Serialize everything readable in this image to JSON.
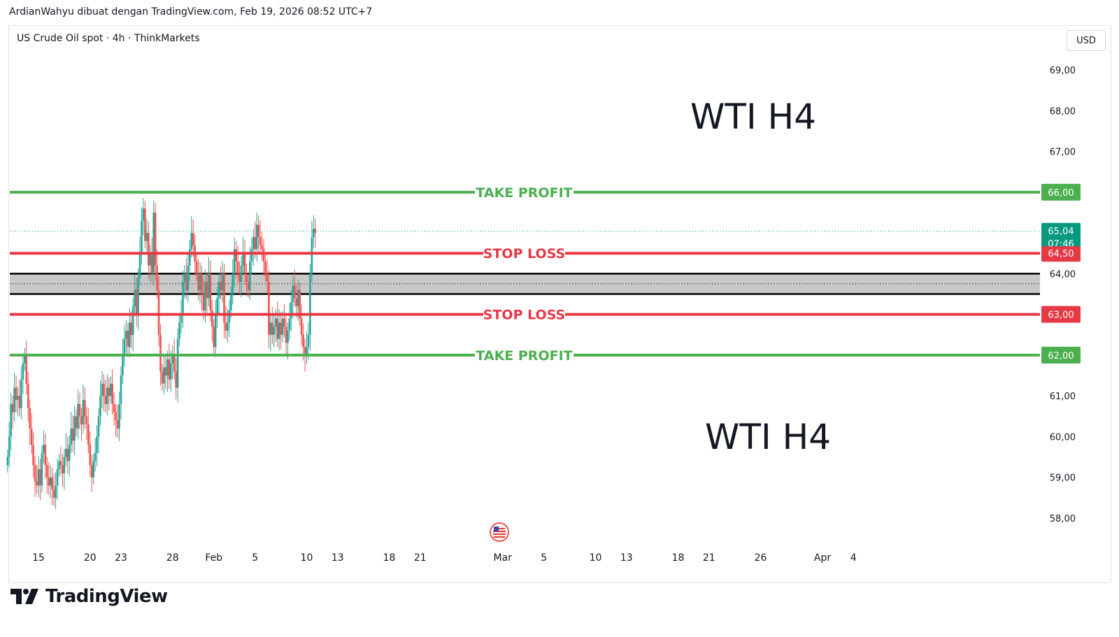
{
  "header": {
    "text": "ArdianWahyu dibuat dengan TradingView.com, Feb 19, 2026 08:52 UTC+7"
  },
  "symbol": {
    "label": "US Crude Oil spot · 4h · ThinkMarkets"
  },
  "currency_button": "USD",
  "footer": {
    "brand": "TradingView"
  },
  "colors": {
    "up": "#26a69a",
    "down": "#ef5350",
    "take_profit": "#4caf50",
    "stop_loss": "#e63946",
    "zone_fill": "#c8c8c8",
    "zone_border": "#000000",
    "current_price": "#089981"
  },
  "annotations": [
    "WTI H4",
    "WTI H4"
  ],
  "chart_data": {
    "type": "candlestick",
    "title": "US Crude Oil spot · 4h · ThinkMarkets",
    "ylim": [
      57.3,
      69.7
    ],
    "y_ticks": [
      "58,00",
      "59,00",
      "60,00",
      "61,00",
      "62,00",
      "63,00",
      "64,00",
      "65,00",
      "66,00",
      "67,00",
      "68,00",
      "69,00"
    ],
    "y_tick_values": [
      58,
      59,
      60,
      61,
      62,
      63,
      64,
      65,
      66,
      67,
      68,
      69
    ],
    "x_tick_labels": [
      "15",
      "20",
      "23",
      "28",
      "Feb",
      "5",
      "10",
      "13",
      "18",
      "21",
      "Mar",
      "5",
      "10",
      "13",
      "18",
      "21",
      "26",
      "Apr",
      "4"
    ],
    "x_tick_dates": [
      "2026-01-15",
      "2026-01-20",
      "2026-01-23",
      "2026-01-28",
      "2026-02-01",
      "2026-02-05",
      "2026-02-10",
      "2026-02-13",
      "2026-02-18",
      "2026-02-21",
      "2026-03-01",
      "2026-03-05",
      "2026-03-10",
      "2026-03-13",
      "2026-03-18",
      "2026-03-21",
      "2026-03-26",
      "2026-04-01",
      "2026-04-04"
    ],
    "x_range": [
      "2026-01-12",
      "2026-04-06"
    ],
    "levels": [
      {
        "label": "TAKE PROFIT",
        "value": 66.0,
        "tag": "66,00",
        "kind": "take_profit"
      },
      {
        "label": "STOP LOSS",
        "value": 64.5,
        "tag": "64,50",
        "kind": "stop_loss"
      },
      {
        "label": "STOP LOSS",
        "value": 63.0,
        "tag": "63,00",
        "kind": "stop_loss"
      },
      {
        "label": "TAKE PROFIT",
        "value": 62.0,
        "tag": "62,00",
        "kind": "take_profit"
      }
    ],
    "zone": {
      "low": 63.5,
      "high": 64.0
    },
    "current_price": {
      "value": 65.04,
      "tag": "65,04",
      "countdown": "07:46"
    },
    "series": [
      {
        "start": "2026-01-12",
        "interval_hours": 4,
        "close": [
          59.5,
          60.0,
          60.8,
          60.6,
          61.2,
          60.9,
          61.0,
          60.7,
          61.4,
          61.8,
          62.0,
          61.3,
          60.7,
          60.2,
          59.8,
          59.3,
          58.9,
          58.8,
          59.2,
          58.8,
          59.6,
          59.8,
          59.3,
          59.0,
          58.8,
          59.0,
          58.7,
          58.5,
          58.8,
          59.2,
          59.4,
          59.3,
          59.1,
          59.5,
          59.7,
          59.4,
          59.8,
          60.2,
          59.9,
          60.5,
          60.2,
          60.8,
          60.5,
          60.3,
          60.9,
          60.5,
          60.3,
          59.8,
          59.3,
          59.0,
          59.4,
          59.6,
          60.0,
          60.5,
          61.0,
          61.3,
          61.0,
          60.8,
          61.2,
          61.0,
          61.3,
          60.8,
          60.6,
          60.4,
          60.2,
          60.8,
          61.5,
          62.0,
          62.4,
          62.6,
          62.2,
          62.8,
          62.5,
          63.2,
          63.6,
          63.0,
          63.9,
          64.5,
          65.3,
          65.6,
          64.8,
          65.0,
          64.2,
          64.5,
          64.0,
          65.5,
          64.2,
          63.6,
          62.5,
          61.6,
          61.3,
          61.7,
          61.5,
          61.9,
          61.4,
          61.8,
          62.0,
          61.6,
          61.2,
          62.4,
          62.8,
          63.0,
          63.8,
          64.0,
          63.6,
          64.2,
          64.6,
          65.0,
          64.7,
          64.3,
          64.0,
          63.6,
          64.0,
          63.5,
          63.1,
          63.8,
          63.4,
          64.0,
          63.1,
          62.7,
          62.2,
          63.0,
          63.4,
          63.8,
          63.6,
          64.0,
          62.8,
          62.6,
          62.8,
          63.1,
          63.5,
          64.0,
          64.6,
          64.3,
          64.0,
          63.8,
          64.2,
          64.5,
          64.0,
          63.8,
          63.6,
          64.3,
          64.6,
          64.9,
          64.6,
          65.2,
          64.9,
          64.7,
          64.6,
          64.3,
          64.0,
          63.8,
          62.5,
          62.8,
          62.5,
          62.7,
          62.9,
          62.4,
          62.8,
          62.5,
          62.9,
          62.7,
          62.3,
          62.6,
          62.9,
          63.3,
          63.7,
          63.4,
          63.2,
          63.6,
          62.9,
          62.5,
          62.2,
          62.0,
          62.2,
          62.5,
          64.0,
          64.9,
          65.1,
          65.0
        ]
      }
    ]
  }
}
